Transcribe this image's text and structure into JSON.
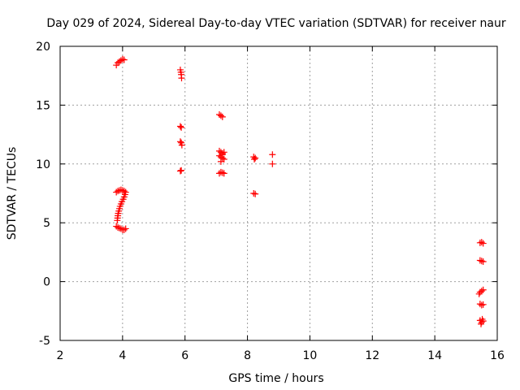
{
  "chart_data": {
    "type": "scatter",
    "title": "Day 029 of 2024, Sidereal Day-to-day VTEC variation (SDTVAR) for receiver naur",
    "xlabel": "GPS time / hours",
    "ylabel": "SDTVAR / TECUs",
    "xlim": [
      2,
      16
    ],
    "ylim": [
      -5,
      20
    ],
    "x_ticks": [
      2,
      4,
      6,
      8,
      10,
      12,
      14,
      16
    ],
    "y_ticks": [
      -5,
      0,
      5,
      10,
      15,
      20
    ],
    "x_tick_labels": [
      "2",
      "4",
      "6",
      "8",
      "10",
      "12",
      "14",
      "16"
    ],
    "y_tick_labels": [
      "-5",
      "0",
      "5",
      "10",
      "15",
      "20"
    ],
    "grid": true,
    "marker": "plus",
    "series": [
      {
        "color": "#ff0000",
        "points": [
          [
            3.8,
            18.4
          ],
          [
            3.85,
            18.6
          ],
          [
            3.9,
            18.7
          ],
          [
            3.95,
            18.8
          ],
          [
            4.0,
            18.9
          ],
          [
            4.05,
            18.85
          ],
          [
            3.8,
            7.6
          ],
          [
            3.85,
            7.7
          ],
          [
            3.9,
            7.75
          ],
          [
            3.95,
            7.8
          ],
          [
            4.0,
            7.75
          ],
          [
            4.05,
            7.7
          ],
          [
            4.1,
            7.6
          ],
          [
            4.08,
            7.4
          ],
          [
            4.05,
            7.2
          ],
          [
            4.02,
            7.0
          ],
          [
            3.98,
            6.8
          ],
          [
            3.95,
            6.6
          ],
          [
            3.92,
            6.4
          ],
          [
            3.9,
            6.2
          ],
          [
            3.88,
            6.0
          ],
          [
            3.86,
            5.8
          ],
          [
            3.85,
            5.6
          ],
          [
            3.84,
            5.4
          ],
          [
            3.83,
            5.2
          ],
          [
            3.8,
            4.7
          ],
          [
            3.85,
            4.6
          ],
          [
            3.9,
            4.55
          ],
          [
            3.95,
            4.5
          ],
          [
            4.0,
            4.4
          ],
          [
            4.05,
            4.4
          ],
          [
            4.1,
            4.5
          ],
          [
            5.85,
            18.0
          ],
          [
            5.87,
            17.8
          ],
          [
            5.88,
            17.6
          ],
          [
            5.89,
            17.3
          ],
          [
            5.85,
            13.2
          ],
          [
            5.88,
            13.1
          ],
          [
            5.85,
            11.9
          ],
          [
            5.88,
            11.8
          ],
          [
            5.9,
            11.6
          ],
          [
            5.85,
            9.4
          ],
          [
            5.88,
            9.45
          ],
          [
            7.1,
            14.2
          ],
          [
            7.15,
            14.1
          ],
          [
            7.2,
            14.0
          ],
          [
            7.1,
            11.1
          ],
          [
            7.15,
            11.0
          ],
          [
            7.2,
            10.9
          ],
          [
            7.1,
            10.7
          ],
          [
            7.15,
            10.6
          ],
          [
            7.2,
            10.5
          ],
          [
            7.25,
            10.4
          ],
          [
            7.15,
            10.2
          ],
          [
            7.2,
            10.8
          ],
          [
            7.25,
            11.0
          ],
          [
            7.1,
            9.2
          ],
          [
            7.15,
            9.3
          ],
          [
            7.2,
            9.25
          ],
          [
            7.25,
            9.2
          ],
          [
            8.2,
            10.6
          ],
          [
            8.25,
            10.5
          ],
          [
            8.22,
            10.4
          ],
          [
            8.2,
            7.5
          ],
          [
            8.25,
            7.45
          ],
          [
            8.8,
            10.8
          ],
          [
            8.8,
            10.0
          ],
          [
            15.45,
            3.3
          ],
          [
            15.5,
            3.35
          ],
          [
            15.55,
            3.25
          ],
          [
            15.45,
            1.8
          ],
          [
            15.5,
            1.75
          ],
          [
            15.55,
            1.7
          ],
          [
            15.45,
            -0.9
          ],
          [
            15.5,
            -0.8
          ],
          [
            15.55,
            -0.7
          ],
          [
            15.42,
            -1.05
          ],
          [
            15.45,
            -1.9
          ],
          [
            15.5,
            -2.0
          ],
          [
            15.55,
            -1.95
          ],
          [
            15.45,
            -3.3
          ],
          [
            15.5,
            -3.45
          ],
          [
            15.55,
            -3.35
          ],
          [
            15.48,
            -3.6
          ],
          [
            15.52,
            -3.2
          ]
        ]
      }
    ]
  }
}
